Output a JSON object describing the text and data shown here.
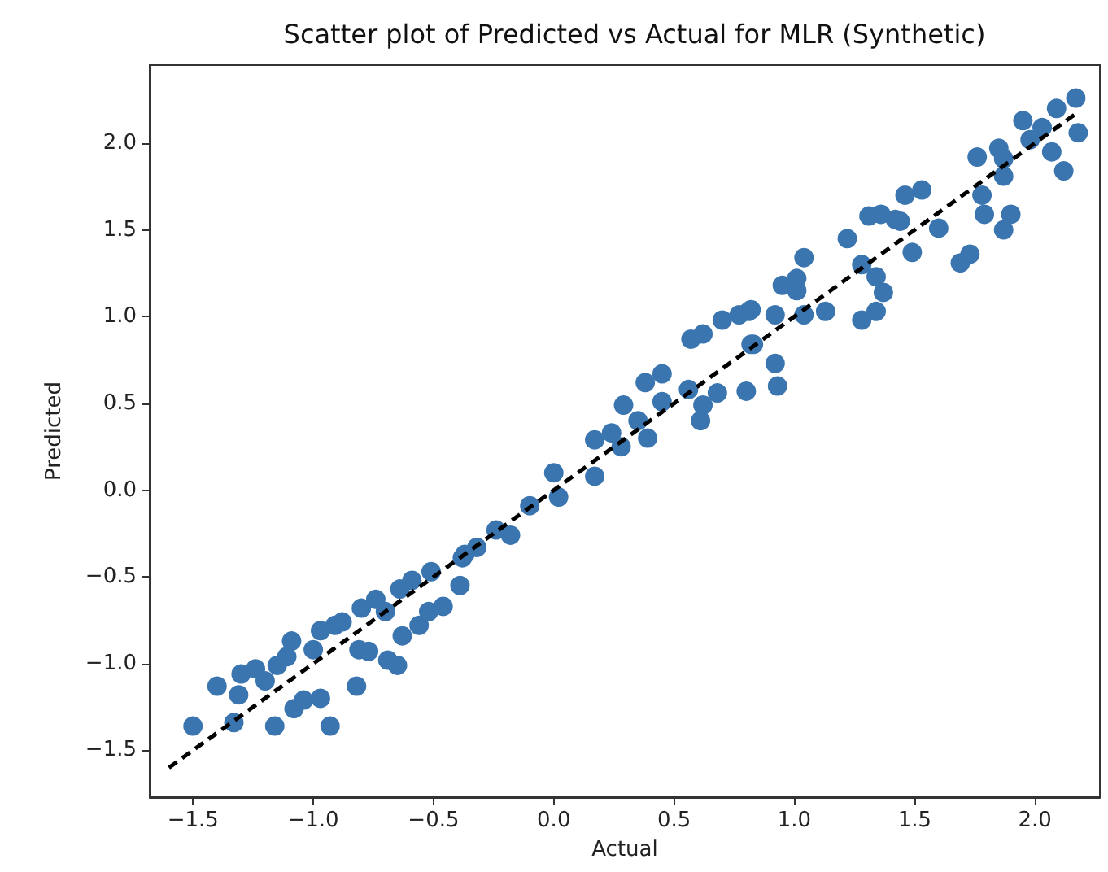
{
  "chart_data": {
    "type": "scatter",
    "title": "Scatter plot of Predicted vs Actual for MLR (Synthetic)",
    "xlabel": "Actual",
    "ylabel": "Predicted",
    "xlim": [
      -1.68,
      2.27
    ],
    "ylim": [
      -1.77,
      2.45
    ],
    "xticks": [
      {
        "value": -1.5,
        "label": "−1.5"
      },
      {
        "value": -1,
        "label": "−1.0"
      },
      {
        "value": -0.5,
        "label": "−0.5"
      },
      {
        "value": 0,
        "label": "0.0"
      },
      {
        "value": 0.5,
        "label": "0.5"
      },
      {
        "value": 1,
        "label": "1.0"
      },
      {
        "value": 1.5,
        "label": "1.5"
      },
      {
        "value": 2,
        "label": "2.0"
      }
    ],
    "yticks": [
      {
        "value": -1.5,
        "label": "−1.5"
      },
      {
        "value": -1,
        "label": "−1.0"
      },
      {
        "value": -0.5,
        "label": "−0.5"
      },
      {
        "value": 0,
        "label": "0.0"
      },
      {
        "value": 0.5,
        "label": "0.5"
      },
      {
        "value": 1,
        "label": "1.0"
      },
      {
        "value": 1.5,
        "label": "1.5"
      },
      {
        "value": 2,
        "label": "2.0"
      }
    ],
    "grid": false,
    "series": [
      {
        "color": "#3a75b0",
        "marker": "circle",
        "x": [
          -1.5,
          -1.4,
          -1.33,
          -1.31,
          -1.3,
          -1.24,
          -1.2,
          -1.16,
          -1.15,
          -1.11,
          -1.09,
          -1.08,
          -1.04,
          -1.0,
          -0.97,
          -0.93,
          -0.97,
          -0.91,
          -0.88,
          -0.82,
          -0.81,
          -0.8,
          -0.77,
          -0.74,
          -0.7,
          -0.69,
          -0.65,
          -0.64,
          -0.63,
          -0.59,
          -0.56,
          -0.52,
          -0.51,
          -0.46,
          -0.39,
          -0.38,
          -0.32,
          -0.37,
          -0.24,
          -0.18,
          -0.1,
          0.0,
          0.02,
          0.17,
          0.17,
          0.24,
          0.28,
          0.29,
          0.35,
          0.38,
          0.45,
          0.39,
          0.45,
          0.57,
          0.62,
          0.56,
          0.62,
          0.61,
          0.68,
          0.7,
          0.77,
          0.82,
          0.82,
          0.8,
          0.92,
          0.93,
          0.95,
          1.01,
          1.04,
          0.83,
          0.81,
          0.92,
          1.01,
          1.04,
          1.13,
          1.22,
          1.28,
          1.34,
          1.37,
          1.28,
          1.34,
          1.31,
          1.36,
          1.42,
          1.44,
          1.46,
          1.53,
          1.49,
          1.6,
          1.69,
          1.73,
          1.76,
          1.85,
          1.78,
          1.79,
          1.87,
          1.87,
          1.9,
          1.87,
          1.95,
          2.03,
          1.98,
          2.07,
          2.09,
          2.17,
          2.18,
          2.12
        ],
        "values": [
          -1.36,
          -1.13,
          -1.34,
          -1.18,
          -1.06,
          -1.03,
          -1.1,
          -1.36,
          -1.01,
          -0.96,
          -0.87,
          -1.26,
          -1.21,
          -0.92,
          -1.2,
          -1.36,
          -0.81,
          -0.78,
          -0.76,
          -1.13,
          -0.92,
          -0.68,
          -0.93,
          -0.63,
          -0.7,
          -0.98,
          -1.01,
          -0.57,
          -0.84,
          -0.52,
          -0.78,
          -0.7,
          -0.47,
          -0.67,
          -0.55,
          -0.39,
          -0.33,
          -0.37,
          -0.23,
          -0.26,
          -0.09,
          0.1,
          -0.04,
          0.08,
          0.29,
          0.33,
          0.25,
          0.49,
          0.4,
          0.62,
          0.67,
          0.3,
          0.51,
          0.87,
          0.9,
          0.58,
          0.49,
          0.4,
          0.56,
          0.98,
          1.01,
          1.04,
          0.84,
          0.57,
          0.73,
          0.6,
          1.18,
          1.22,
          1.34,
          0.84,
          1.03,
          1.01,
          1.15,
          1.01,
          1.03,
          1.45,
          1.3,
          1.23,
          1.14,
          0.98,
          1.03,
          1.58,
          1.59,
          1.56,
          1.55,
          1.7,
          1.73,
          1.37,
          1.51,
          1.31,
          1.36,
          1.92,
          1.97,
          1.7,
          1.59,
          1.91,
          1.81,
          1.59,
          1.5,
          2.13,
          2.09,
          2.02,
          1.95,
          2.2,
          2.26,
          2.06,
          1.84
        ]
      },
      {
        "type": "line",
        "color": "#000000",
        "marker": "none",
        "line_style": "dashed",
        "x": [
          -1.6,
          2.17
        ],
        "values": [
          -1.6,
          2.17
        ]
      }
    ]
  }
}
